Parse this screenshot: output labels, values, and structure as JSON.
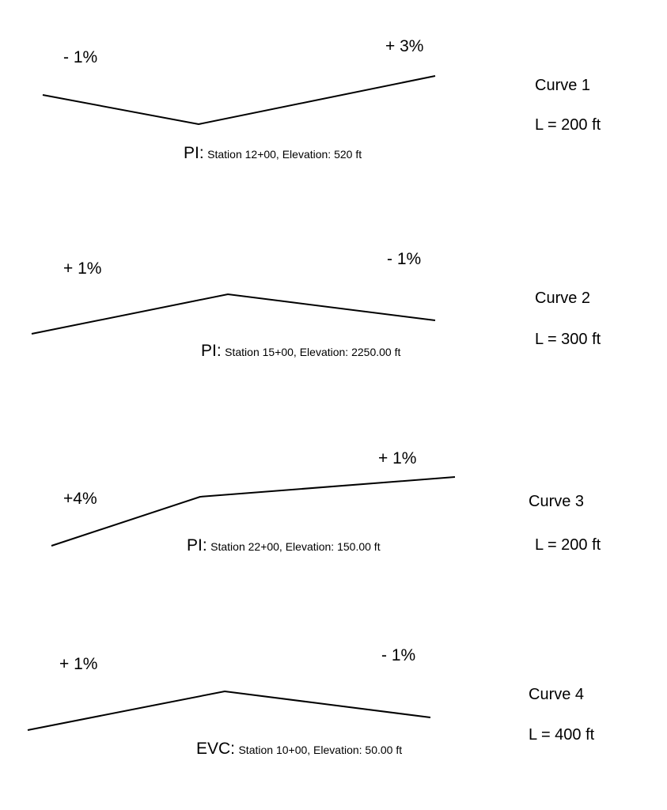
{
  "curves": [
    {
      "name": "Curve 1",
      "length": "L = 200 ft",
      "grade_in": "- 1%",
      "grade_out": "+ 3%",
      "point_type": "PI:",
      "point_detail": "Station 12+00, Elevation: 520 ft",
      "grade_in_value": -1,
      "grade_out_value": 3
    },
    {
      "name": "Curve 2",
      "length": "L = 300 ft",
      "grade_in": "+ 1%",
      "grade_out": "- 1%",
      "point_type": "PI:",
      "point_detail": "Station 15+00, Elevation: 2250.00 ft",
      "grade_in_value": 1,
      "grade_out_value": -1
    },
    {
      "name": "Curve 3",
      "length": "L = 200 ft",
      "grade_in": "+4%",
      "grade_out": "+ 1%",
      "point_type": "PI:",
      "point_detail": "Station 22+00, Elevation: 150.00 ft",
      "grade_in_value": 4,
      "grade_out_value": 1
    },
    {
      "name": "Curve 4",
      "length": "L = 400 ft",
      "grade_in": "+ 1%",
      "grade_out": "- 1%",
      "point_type": "EVC:",
      "point_detail": "Station 10+00, Elevation: 50.00 ft",
      "grade_in_value": 1,
      "grade_out_value": -1
    }
  ]
}
